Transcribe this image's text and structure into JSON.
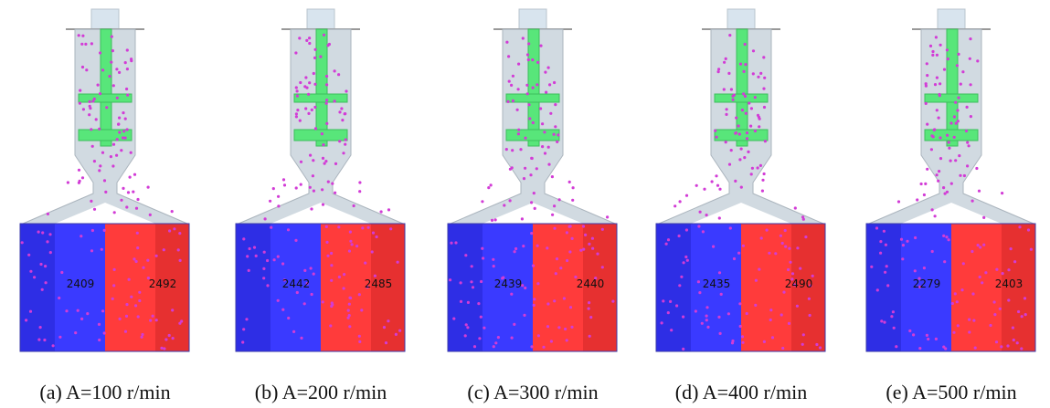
{
  "panels": [
    {
      "caption": "(a)  A=100 r/min",
      "left_count": 2409,
      "right_count": 2492
    },
    {
      "caption": "(b) A=200 r/min",
      "left_count": 2442,
      "right_count": 2485
    },
    {
      "caption": "(c) A=300 r/min",
      "left_count": 2439,
      "right_count": 2440
    },
    {
      "caption": "(d) A=400 r/min",
      "left_count": 2435,
      "right_count": 2490
    },
    {
      "caption": "(e) A=500 r/min",
      "left_count": 2279,
      "right_count": 2403
    }
  ]
}
